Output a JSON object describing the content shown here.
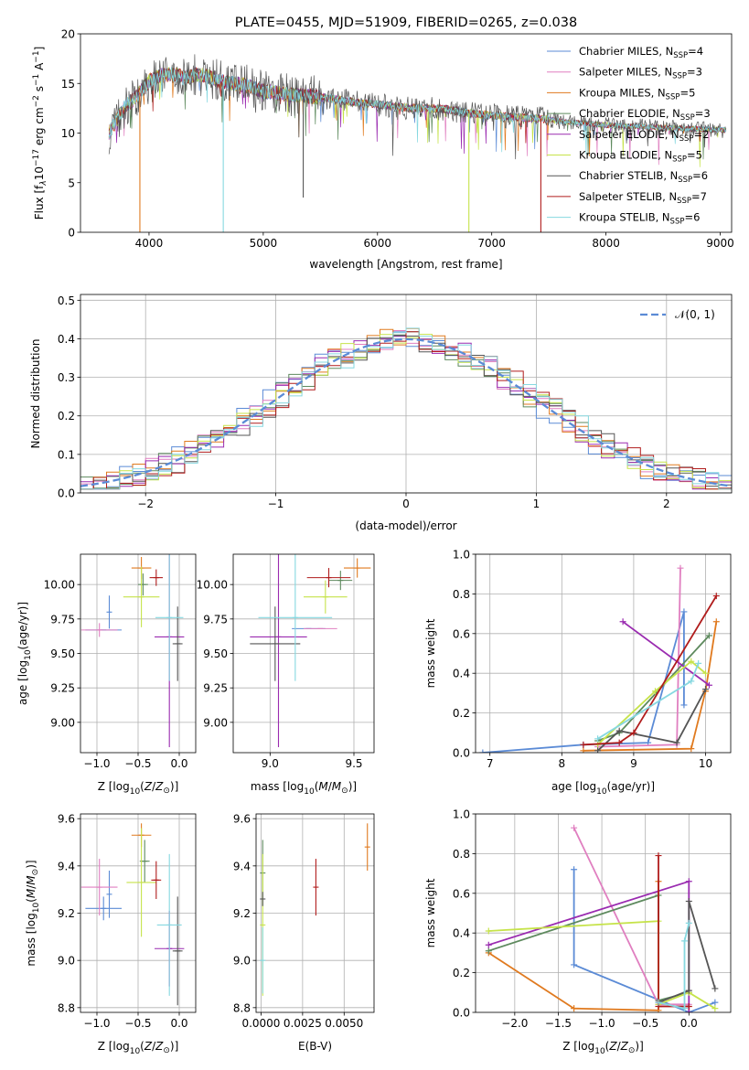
{
  "colors": {
    "chabrier_miles": "#5b8bd6",
    "salpeter_miles": "#e07fc0",
    "kroupa_miles": "#e07a1f",
    "chabrier_elodie": "#5e8a5e",
    "salpeter_elodie": "#9a2bb0",
    "kroupa_elodie": "#c6e34a",
    "chabrier_stelib": "#555555",
    "salpeter_stelib": "#b01c1c",
    "kroupa_stelib": "#86d8e0",
    "normal_curve": "#5b8bd6"
  },
  "chart_data": [
    {
      "id": "spectrum",
      "type": "line",
      "title": "PLATE=0455, MJD=51909, FIBERID=0265, z=0.038",
      "xlabel": "wavelength [Angstrom, rest frame]",
      "ylabel_prefix": "Flux [f",
      "ylabel_sub": "λ",
      "ylabel_middle": "10",
      "ylabel_sup1": "−17",
      "ylabel_mid2": " erg cm",
      "ylabel_sup2": "−2",
      "ylabel_mid3": " s",
      "ylabel_sup3": "−1",
      "ylabel_end": " A",
      "ylabel_sup4": "−1",
      "ylabel_close": "]",
      "xlim": [
        3400,
        9100
      ],
      "ylim": [
        0,
        20
      ],
      "xticks": [
        "4000",
        "5000",
        "6000",
        "7000",
        "8000",
        "9000"
      ],
      "yticks": [
        "0",
        "5",
        "10",
        "15",
        "20"
      ],
      "grid": false,
      "legend_position": "right",
      "continuum": {
        "x": [
          3650,
          3700,
          3800,
          3900,
          4000,
          4100,
          4200,
          4300,
          4400,
          4500,
          4600,
          4700,
          4800,
          4900,
          5000,
          5200,
          5400,
          5600,
          5800,
          6000,
          6200,
          6400,
          6600,
          6800,
          7000,
          7200,
          7400,
          7600,
          7800,
          8000,
          8200,
          8400,
          8600,
          8800,
          9000,
          9050
        ],
        "y": [
          10.0,
          11.0,
          12.8,
          13.8,
          15.2,
          15.8,
          16.0,
          15.6,
          15.9,
          15.8,
          15.3,
          15.1,
          14.9,
          14.6,
          14.2,
          13.9,
          13.7,
          13.5,
          13.1,
          12.9,
          12.6,
          12.5,
          12.4,
          12.0,
          11.8,
          11.6,
          11.5,
          11.2,
          11.0,
          10.8,
          10.7,
          10.6,
          10.5,
          10.4,
          10.3,
          10.3
        ]
      },
      "drops": [
        {
          "series": "kroupa_miles",
          "x": 3920,
          "to": 0
        },
        {
          "series": "kroupa_stelib",
          "x": 4650,
          "to": 0
        },
        {
          "series": "kroupa_elodie",
          "x": 6800,
          "to": 0
        },
        {
          "series": "salpeter_stelib",
          "x": 7430,
          "to": 0
        },
        {
          "series": "chabrier_stelib",
          "x": 5350,
          "to": 3.5
        }
      ],
      "series": [
        {
          "key": "chabrier_miles",
          "name": "Chabrier MILES",
          "nssp": "4"
        },
        {
          "key": "salpeter_miles",
          "name": "Salpeter MILES",
          "nssp": "3"
        },
        {
          "key": "kroupa_miles",
          "name": "Kroupa MILES",
          "nssp": "5"
        },
        {
          "key": "chabrier_elodie",
          "name": "Chabrier ELODIE",
          "nssp": "3"
        },
        {
          "key": "salpeter_elodie",
          "name": "Salpeter ELODIE",
          "nssp": "2"
        },
        {
          "key": "kroupa_elodie",
          "name": "Kroupa ELODIE",
          "nssp": "5"
        },
        {
          "key": "chabrier_stelib",
          "name": "Chabrier STELIB",
          "nssp": "6"
        },
        {
          "key": "salpeter_stelib",
          "name": "Salpeter STELIB",
          "nssp": "7"
        },
        {
          "key": "kroupa_stelib",
          "name": "Kroupa STELIB",
          "nssp": "6"
        }
      ],
      "legend_nssp_prefix": "N",
      "legend_nssp_sub": "SSP",
      "legend_nssp_eq": "="
    },
    {
      "id": "residuals",
      "type": "histogram",
      "xlabel": "(data-model)/error",
      "ylabel": "Normed distribution",
      "xlim": [
        -2.5,
        2.5
      ],
      "ylim": [
        0,
        0.515
      ],
      "xticks": [
        -2,
        -1,
        0,
        1,
        2
      ],
      "xticklabels": [
        "−2",
        "−1",
        "0",
        "1",
        "2"
      ],
      "yticks": [
        0.0,
        0.1,
        0.2,
        0.3,
        0.4,
        0.5
      ],
      "yticklabels": [
        "0.0",
        "0.1",
        "0.2",
        "0.3",
        "0.4",
        "0.5"
      ],
      "grid": true,
      "bin_width": 0.1,
      "legend": "𝒩(0, 1)",
      "legend_position": "top-right"
    },
    {
      "id": "age_vs_z",
      "type": "scatter",
      "xlabel": "Z [log10(Z/Z⊙)]",
      "ylabel": "age  [log10(age/yr)]",
      "xlim": [
        -1.2,
        0.2
      ],
      "ylim": [
        8.78,
        10.22
      ],
      "xticks": [
        -1.0,
        -0.5,
        0.0
      ],
      "xticklabels": [
        "−1.0",
        "−0.5",
        "0.0"
      ],
      "yticks": [
        9.0,
        9.25,
        9.5,
        9.75,
        10.0
      ],
      "yticklabels": [
        "9.00",
        "9.25",
        "9.50",
        "9.75",
        "10.00"
      ],
      "grid": true,
      "points": [
        {
          "s": "chabrier_miles",
          "x": -0.92,
          "y": 9.67,
          "xerr": 0.22,
          "yerr": 0.0
        },
        {
          "s": "chabrier_miles",
          "x": -0.85,
          "y": 9.8,
          "xerr": 0.0,
          "yerr": 0.12
        },
        {
          "s": "salpeter_miles",
          "x": -0.97,
          "y": 9.67,
          "xerr": 0.22,
          "yerr": 0.05
        },
        {
          "s": "kroupa_miles",
          "x": -0.46,
          "y": 10.12,
          "xerr": 0.12,
          "yerr": 0.08
        },
        {
          "s": "chabrier_elodie",
          "x": -0.44,
          "y": 10.0,
          "xerr": 0.06,
          "yerr": 0.08
        },
        {
          "s": "salpeter_elodie",
          "x": -0.12,
          "y": 9.62,
          "xerr": 0.18,
          "yerr": 0.8
        },
        {
          "s": "kroupa_elodie",
          "x": -0.46,
          "y": 9.91,
          "xerr": 0.22,
          "yerr": 0.22
        },
        {
          "s": "chabrier_stelib",
          "x": -0.02,
          "y": 9.57,
          "xerr": 0.06,
          "yerr": 0.27
        },
        {
          "s": "salpeter_stelib",
          "x": -0.28,
          "y": 10.05,
          "xerr": 0.08,
          "yerr": 0.06
        },
        {
          "s": "kroupa_stelib",
          "x": -0.12,
          "y": 9.76,
          "xerr": 0.17,
          "yerr": 0.46
        }
      ]
    },
    {
      "id": "age_vs_mass",
      "type": "scatter",
      "xlabel": "mass [log10(M/M⊙)]",
      "ylabel": "",
      "xlim": [
        8.78,
        9.62
      ],
      "ylim": [
        8.78,
        10.22
      ],
      "xticks": [
        9.0,
        9.5
      ],
      "xticklabels": [
        "9.0",
        "9.5"
      ],
      "yticks": [
        9.0,
        9.25,
        9.5,
        9.75,
        10.0
      ],
      "yticklabels": [
        "9.00",
        "9.25",
        "9.50",
        "9.75",
        "10.00"
      ],
      "grid": true,
      "points": [
        {
          "s": "chabrier_miles",
          "x": 9.23,
          "y": 9.68,
          "xerr": 0.1,
          "yerr": 0.0
        },
        {
          "s": "salpeter_miles",
          "x": 9.3,
          "y": 9.68,
          "xerr": 0.1,
          "yerr": 0.0
        },
        {
          "s": "kroupa_miles",
          "x": 9.52,
          "y": 10.12,
          "xerr": 0.08,
          "yerr": 0.07
        },
        {
          "s": "chabrier_elodie",
          "x": 9.42,
          "y": 10.03,
          "xerr": 0.07,
          "yerr": 0.07
        },
        {
          "s": "salpeter_elodie",
          "x": 9.05,
          "y": 9.62,
          "xerr": 0.17,
          "yerr": 0.8
        },
        {
          "s": "kroupa_elodie",
          "x": 9.33,
          "y": 9.91,
          "xerr": 0.13,
          "yerr": 0.12
        },
        {
          "s": "chabrier_stelib",
          "x": 9.03,
          "y": 9.57,
          "xerr": 0.15,
          "yerr": 0.27
        },
        {
          "s": "salpeter_stelib",
          "x": 9.35,
          "y": 10.05,
          "xerr": 0.13,
          "yerr": 0.07
        },
        {
          "s": "kroupa_stelib",
          "x": 9.15,
          "y": 9.76,
          "xerr": 0.22,
          "yerr": 0.46
        }
      ]
    },
    {
      "id": "weight_vs_age",
      "type": "line",
      "xlabel": "age  [log10(age/yr)]",
      "ylabel": "mass weight",
      "xlim": [
        6.8,
        10.35
      ],
      "ylim": [
        0,
        1.0
      ],
      "xticks": [
        7,
        8,
        9,
        10
      ],
      "xticklabels": [
        "7",
        "8",
        "9",
        "10"
      ],
      "yticks": [
        0.0,
        0.2,
        0.4,
        0.6,
        0.8,
        1.0
      ],
      "yticklabels": [
        "0.0",
        "0.2",
        "0.4",
        "0.6",
        "0.8",
        "1.0"
      ],
      "grid": true,
      "series": [
        {
          "s": "chabrier_miles",
          "pts": [
            [
              6.9,
              0.0
            ],
            [
              8.3,
              0.04
            ],
            [
              9.2,
              0.05
            ],
            [
              9.7,
              0.71
            ],
            [
              9.7,
              0.24
            ]
          ]
        },
        {
          "s": "salpeter_miles",
          "pts": [
            [
              8.5,
              0.03
            ],
            [
              9.6,
              0.04
            ],
            [
              9.65,
              0.93
            ]
          ]
        },
        {
          "s": "kroupa_miles",
          "pts": [
            [
              8.3,
              0.01
            ],
            [
              9.8,
              0.02
            ],
            [
              10.0,
              0.31
            ],
            [
              10.15,
              0.66
            ]
          ]
        },
        {
          "s": "chabrier_elodie",
          "pts": [
            [
              8.5,
              0.06
            ],
            [
              8.8,
              0.1
            ],
            [
              10.05,
              0.59
            ]
          ]
        },
        {
          "s": "salpeter_elodie",
          "pts": [
            [
              8.85,
              0.66
            ],
            [
              10.05,
              0.34
            ]
          ]
        },
        {
          "s": "kroupa_elodie",
          "pts": [
            [
              8.5,
              0.04
            ],
            [
              9.3,
              0.31
            ],
            [
              9.8,
              0.46
            ],
            [
              10.0,
              0.4
            ]
          ]
        },
        {
          "s": "chabrier_stelib",
          "pts": [
            [
              8.5,
              0.01
            ],
            [
              8.8,
              0.11
            ],
            [
              9.6,
              0.05
            ],
            [
              10.0,
              0.32
            ]
          ]
        },
        {
          "s": "salpeter_stelib",
          "pts": [
            [
              8.3,
              0.04
            ],
            [
              8.8,
              0.05
            ],
            [
              9.0,
              0.1
            ],
            [
              10.15,
              0.79
            ]
          ]
        },
        {
          "s": "kroupa_stelib",
          "pts": [
            [
              8.5,
              0.07
            ],
            [
              9.8,
              0.36
            ],
            [
              9.9,
              0.45
            ]
          ]
        }
      ]
    },
    {
      "id": "mass_vs_z",
      "type": "scatter",
      "xlabel": "Z [log10(Z/Z⊙)]",
      "ylabel": "mass [log10(M/M⊙)]",
      "xlim": [
        -1.2,
        0.2
      ],
      "ylim": [
        8.78,
        9.62
      ],
      "xticks": [
        -1.0,
        -0.5,
        0.0
      ],
      "xticklabels": [
        "−1.0",
        "−0.5",
        "0.0"
      ],
      "yticks": [
        8.8,
        9.0,
        9.2,
        9.4,
        9.6
      ],
      "yticklabels": [
        "8.8",
        "9.0",
        "9.2",
        "9.4",
        "9.6"
      ],
      "grid": true,
      "points": [
        {
          "s": "chabrier_miles",
          "x": -0.92,
          "y": 9.22,
          "xerr": 0.22,
          "yerr": 0.05
        },
        {
          "s": "chabrier_miles",
          "x": -0.85,
          "y": 9.28,
          "xerr": 0.0,
          "yerr": 0.1
        },
        {
          "s": "salpeter_miles",
          "x": -0.97,
          "y": 9.31,
          "xerr": 0.22,
          "yerr": 0.12
        },
        {
          "s": "kroupa_miles",
          "x": -0.46,
          "y": 9.53,
          "xerr": 0.12,
          "yerr": 0.05
        },
        {
          "s": "chabrier_elodie",
          "x": -0.42,
          "y": 9.42,
          "xerr": 0.06,
          "yerr": 0.09
        },
        {
          "s": "salpeter_elodie",
          "x": -0.12,
          "y": 9.05,
          "xerr": 0.18,
          "yerr": 0.16
        },
        {
          "s": "kroupa_elodie",
          "x": -0.46,
          "y": 9.33,
          "xerr": 0.18,
          "yerr": 0.23
        },
        {
          "s": "chabrier_stelib",
          "x": -0.02,
          "y": 9.04,
          "xerr": 0.06,
          "yerr": 0.23
        },
        {
          "s": "salpeter_stelib",
          "x": -0.28,
          "y": 9.34,
          "xerr": 0.06,
          "yerr": 0.08
        },
        {
          "s": "kroupa_stelib",
          "x": -0.12,
          "y": 9.15,
          "xerr": 0.15,
          "yerr": 0.3
        }
      ]
    },
    {
      "id": "mass_vs_ebv",
      "type": "scatter",
      "xlabel": "E(B-V)",
      "ylabel": "",
      "xlim": [
        -0.0003,
        0.0068
      ],
      "ylim": [
        8.78,
        9.62
      ],
      "xticks": [
        0.0,
        0.0025,
        0.005
      ],
      "xticklabels": [
        "0.0000",
        "0.0025",
        "0.0050"
      ],
      "yticks": [
        8.8,
        9.0,
        9.2,
        9.4,
        9.6
      ],
      "yticklabels": [
        "8.8",
        "9.0",
        "9.2",
        "9.4",
        "9.6"
      ],
      "grid": true,
      "points": [
        {
          "s": "chabrier_elodie",
          "x": 0.0001,
          "y": 9.37,
          "xerr": 0.0,
          "yerr": 0.14
        },
        {
          "s": "kroupa_elodie",
          "x": 0.0001,
          "y": 9.15,
          "xerr": 0.0,
          "yerr": 0.3
        },
        {
          "s": "kroupa_stelib",
          "x": 0.0001,
          "y": 9.0,
          "xerr": 0.0,
          "yerr": 0.14
        },
        {
          "s": "chabrier_stelib",
          "x": 0.0001,
          "y": 9.26,
          "xerr": 0.0,
          "yerr": 0.03
        },
        {
          "s": "salpeter_stelib",
          "x": 0.0033,
          "y": 9.31,
          "xerr": 0.0,
          "yerr": 0.12
        },
        {
          "s": "kroupa_miles",
          "x": 0.0064,
          "y": 9.48,
          "xerr": 0.0,
          "yerr": 0.1
        }
      ]
    },
    {
      "id": "weight_vs_z",
      "type": "line",
      "xlabel": "Z [log10(Z/Z⊙)]",
      "ylabel": "mass weight",
      "xlim": [
        -2.45,
        0.48
      ],
      "ylim": [
        0,
        1.0
      ],
      "xticks": [
        -2.0,
        -1.5,
        -1.0,
        -0.5,
        0.0
      ],
      "xticklabels": [
        "−2.0",
        "−1.5",
        "−1.0",
        "−0.5",
        "0.0"
      ],
      "yticks": [
        0.0,
        0.2,
        0.4,
        0.6,
        0.8,
        1.0
      ],
      "yticklabels": [
        "0.0",
        "0.2",
        "0.4",
        "0.6",
        "0.8",
        "1.0"
      ],
      "grid": true,
      "series": [
        {
          "s": "chabrier_miles",
          "pts": [
            [
              -1.32,
              0.72
            ],
            [
              -1.32,
              0.24
            ],
            [
              0.0,
              0.0
            ],
            [
              0.3,
              0.05
            ]
          ]
        },
        {
          "s": "salpeter_miles",
          "pts": [
            [
              -1.32,
              0.93
            ],
            [
              -0.35,
              0.04
            ],
            [
              0.0,
              0.04
            ]
          ]
        },
        {
          "s": "kroupa_miles",
          "pts": [
            [
              -2.3,
              0.3
            ],
            [
              -1.32,
              0.02
            ],
            [
              -0.35,
              0.01
            ],
            [
              -0.35,
              0.66
            ]
          ]
        },
        {
          "s": "chabrier_elodie",
          "pts": [
            [
              -2.3,
              0.31
            ],
            [
              -0.35,
              0.59
            ],
            [
              -0.35,
              0.06
            ],
            [
              0.0,
              0.1
            ]
          ]
        },
        {
          "s": "salpeter_elodie",
          "pts": [
            [
              -2.3,
              0.34
            ],
            [
              0.0,
              0.66
            ],
            [
              0.0,
              0.0
            ]
          ]
        },
        {
          "s": "kroupa_elodie",
          "pts": [
            [
              -2.3,
              0.41
            ],
            [
              -0.35,
              0.46
            ],
            [
              -0.35,
              0.04
            ],
            [
              0.0,
              0.1
            ],
            [
              0.3,
              0.02
            ]
          ]
        },
        {
          "s": "chabrier_stelib",
          "pts": [
            [
              -0.35,
              0.05
            ],
            [
              0.0,
              0.11
            ],
            [
              0.0,
              0.56
            ],
            [
              0.3,
              0.12
            ]
          ]
        },
        {
          "s": "salpeter_stelib",
          "pts": [
            [
              -0.35,
              0.79
            ],
            [
              -0.35,
              0.03
            ],
            [
              0.0,
              0.03
            ]
          ]
        },
        {
          "s": "kroupa_stelib",
          "pts": [
            [
              -0.35,
              0.05
            ],
            [
              -0.05,
              0.02
            ],
            [
              -0.05,
              0.36
            ],
            [
              0.0,
              0.45
            ]
          ]
        }
      ]
    }
  ]
}
